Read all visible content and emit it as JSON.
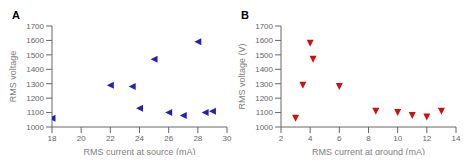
{
  "chart_data": [
    {
      "type": "scatter",
      "title": "A",
      "x": [
        18,
        22,
        23.5,
        24,
        25,
        26,
        27,
        28,
        28.5,
        29
      ],
      "values": [
        1060,
        1290,
        1280,
        1130,
        1470,
        1100,
        1080,
        1590,
        1100,
        1110
      ],
      "color": "#2222bb",
      "marker": "triangle-left",
      "xlabel": "RMS current at source (mA)",
      "ylabel": "RMS voltage",
      "xlim": [
        18,
        30
      ],
      "ylim": [
        1000,
        1700
      ],
      "xticks": [
        18,
        20,
        22,
        24,
        26,
        28,
        30
      ],
      "yticks": [
        1000,
        1100,
        1200,
        1300,
        1400,
        1500,
        1600,
        1700
      ],
      "grid": false
    },
    {
      "type": "scatter",
      "title": "B",
      "x": [
        3,
        3.5,
        4,
        4.2,
        6,
        8.5,
        10,
        11,
        12,
        13
      ],
      "values": [
        1060,
        1290,
        1580,
        1470,
        1280,
        1110,
        1100,
        1080,
        1070,
        1110
      ],
      "color": "#cc1111",
      "marker": "triangle-down",
      "xlabel": "RMS current at ground (mA)",
      "ylabel": "RMS voltage (V)",
      "xlim": [
        2,
        14
      ],
      "ylim": [
        1000,
        1700
      ],
      "xticks": [
        2,
        4,
        6,
        8,
        10,
        12,
        14
      ],
      "yticks": [
        1000,
        1100,
        1200,
        1300,
        1400,
        1500,
        1600,
        1700
      ],
      "grid": false
    }
  ]
}
